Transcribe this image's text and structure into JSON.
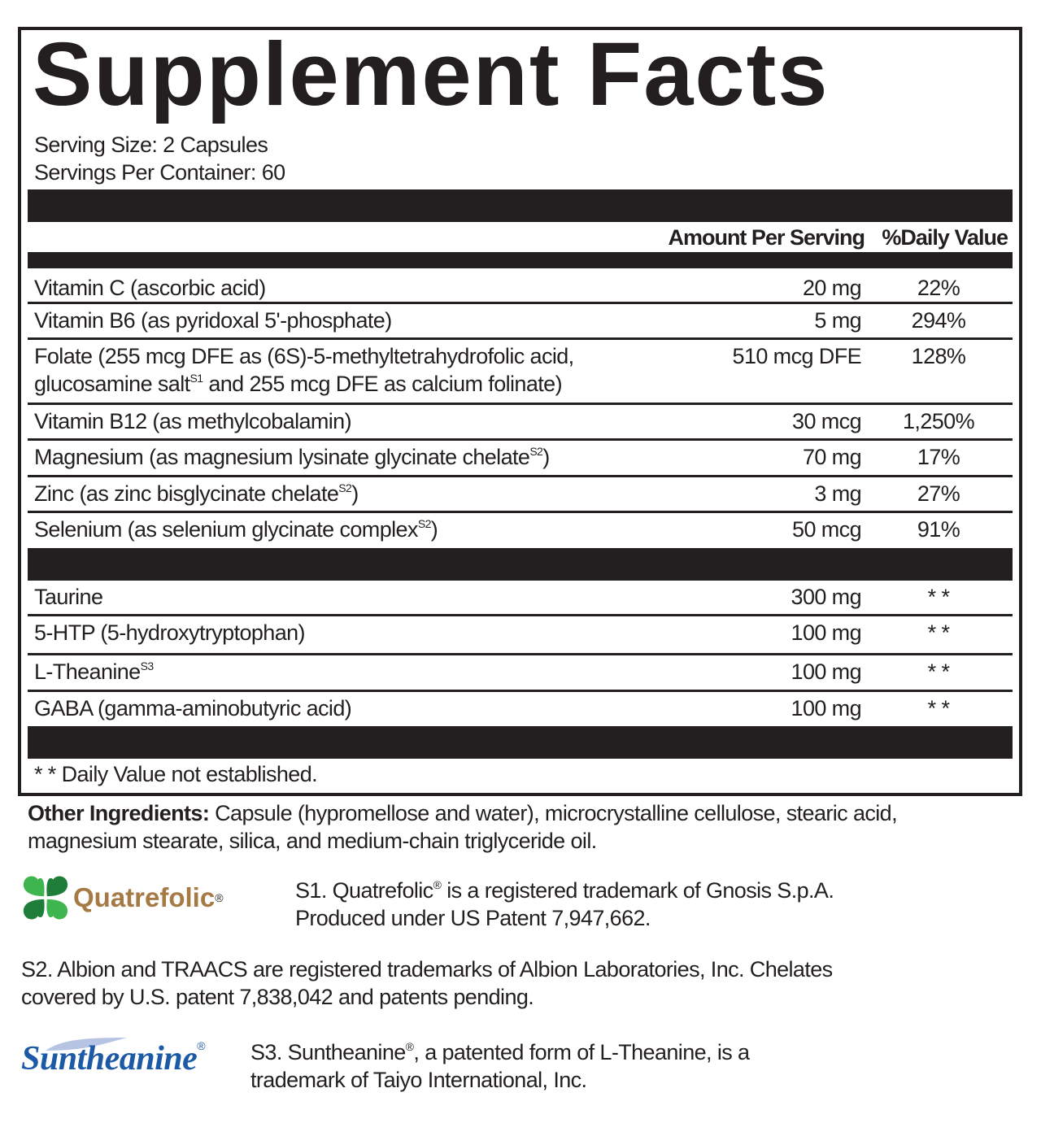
{
  "title": "Supplement Facts",
  "serving_size": "Serving Size: 2 Capsules",
  "servings_per_container": "Servings Per Container: 60",
  "header": {
    "amount": "Amount Per Serving",
    "dv": "%Daily Value"
  },
  "vitamins": [
    {
      "name": "Vitamin C (ascorbic acid)",
      "amount": "20 mg",
      "dv": "22%"
    },
    {
      "name": "Vitamin B6 (as pyridoxal 5'-phosphate)",
      "amount": "5 mg",
      "dv": "294%"
    },
    {
      "name": "Folate (255 mcg DFE as (6S)-5-methyltetrahydrofolic acid,",
      "name2": "glucosamine salt",
      "sup": "S1",
      "after": " and 255 mcg DFE as calcium folinate)",
      "amount": "510 mcg DFE",
      "dv": "128%"
    },
    {
      "name": "Vitamin B12 (as methylcobalamin)",
      "amount": "30 mcg",
      "dv": "1,250%"
    },
    {
      "name": "Magnesium (as magnesium lysinate glycinate chelate",
      "sup": "S2",
      "after": ")",
      "amount": "70 mg",
      "dv": "17%"
    },
    {
      "name": "Zinc (as zinc bisglycinate chelate",
      "sup": "S2",
      "after": ")",
      "amount": "3 mg",
      "dv": "27%"
    },
    {
      "name": "Selenium (as selenium glycinate complex",
      "sup": "S2",
      "after": ")",
      "amount": "50 mcg",
      "dv": "91%"
    }
  ],
  "others": [
    {
      "name": "Taurine",
      "amount": "300 mg",
      "dv": "* *"
    },
    {
      "name": "5-HTP (5-hydroxytryptophan)",
      "amount": "100 mg",
      "dv": "* *"
    },
    {
      "name": "L-Theanine",
      "sup": "S3",
      "amount": "100 mg",
      "dv": "* *"
    },
    {
      "name": "GABA (gamma-aminobutyric acid)",
      "amount": "100 mg",
      "dv": "* *"
    }
  ],
  "footnote": "* *  Daily Value not established.",
  "other_ingredients": {
    "label": "Other Ingredients:",
    "text": " Capsule (hypromellose and water), microcrystalline cellulose,  stearic acid,",
    "text2": "magnesium stearate, silica, and medium-chain triglyceride oil."
  },
  "s1": {
    "logo": "Quatrefolic",
    "logo_reg": "®",
    "line1a": "S1. Quatrefolic",
    "reg": "®",
    "line1b": " is a registered trademark of Gnosis S.p.A.",
    "line2": "Produced under US Patent 7,947,662."
  },
  "s2": {
    "line1": "S2. Albion and TRAACS are registered trademarks of Albion Laboratories, Inc. Chelates",
    "line2": "covered by U.S. patent 7,838,042 and patents pending."
  },
  "s3": {
    "logo": "Suntheanine",
    "logo_reg": "®",
    "line1a": "S3. Suntheanine",
    "reg": "®",
    "line1b": ", a patented form of L-Theanine, is a",
    "line2": "trademark of Taiyo International, Inc."
  },
  "colors": {
    "ink": "#231f20",
    "quatrefolic_brown": "#a57a45",
    "clover_green": "#2e9e4a",
    "suntheanine_blue": "#1d5aa6"
  }
}
